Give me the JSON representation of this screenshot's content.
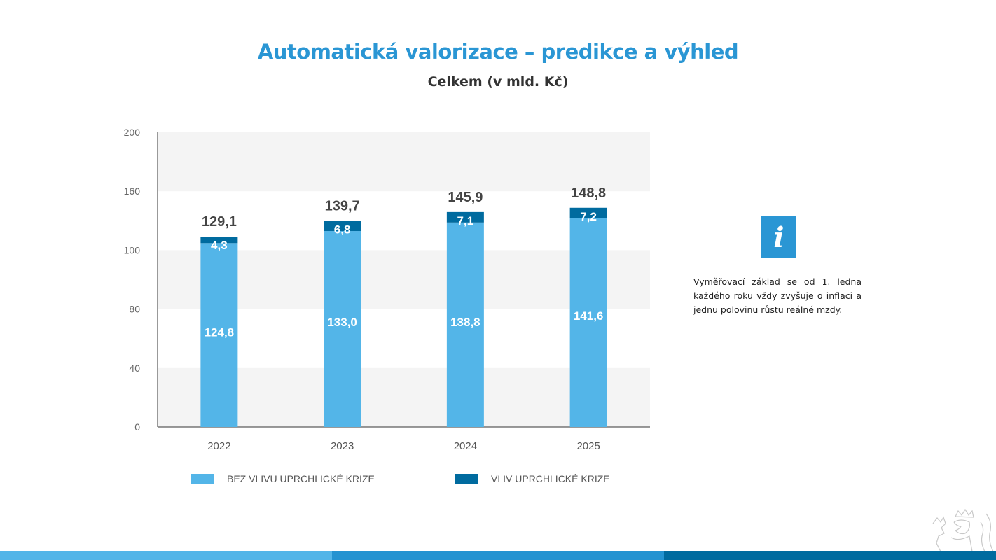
{
  "header": {
    "title": "Automatická valorizace – predikce a výhled",
    "subtitle": "Celkem (v mld. Kč)"
  },
  "info": {
    "icon": "info-icon",
    "icon_glyph": "i",
    "text": "Vyměřovací základ se od 1. ledna každého roku vždy zvyšuje o inflaci a jednu polovinu růstu reálné mzdy."
  },
  "colors": {
    "title": "#2a96d4",
    "base": "#53b5e8",
    "impact": "#006b9f",
    "band": "#f4f4f4",
    "footer": [
      "#53b5e8",
      "#2493d1",
      "#006b9f"
    ]
  },
  "chart_data": {
    "type": "bar",
    "stacked": true,
    "title": "Celkem (v mld. Kč)",
    "xlabel": "",
    "ylabel": "",
    "categories": [
      "2022",
      "2023",
      "2024",
      "2025"
    ],
    "series": [
      {
        "name": "BEZ VLIVU UPRCHLICKÉ KRIZE",
        "values": [
          124.8,
          133.0,
          138.8,
          141.6
        ],
        "labels": [
          "124,8",
          "133,0",
          "138,8",
          "141,6"
        ]
      },
      {
        "name": "VLIV UPRCHLICKÉ KRIZE",
        "values": [
          4.3,
          6.8,
          7.1,
          7.2
        ],
        "labels": [
          "4,3",
          "6,8",
          "7,1",
          "7,2"
        ]
      }
    ],
    "totals": [
      129.1,
      139.7,
      145.9,
      148.8
    ],
    "total_labels": [
      "129,1",
      "139,7",
      "145,9",
      "148,8"
    ],
    "yticks": [
      "0",
      "40",
      "80",
      "100",
      "160",
      "200"
    ],
    "ylim": [
      0,
      200
    ],
    "grid": "alternating bands",
    "legend_position": "bottom"
  }
}
